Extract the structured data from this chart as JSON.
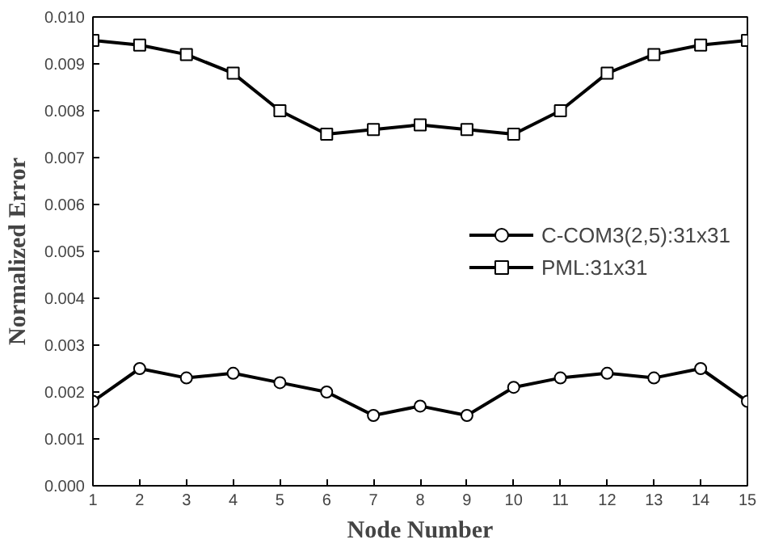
{
  "chart_data": {
    "type": "line",
    "xlabel": "Node Number",
    "ylabel": "Normalized Error",
    "x": [
      1,
      2,
      3,
      4,
      5,
      6,
      7,
      8,
      9,
      10,
      11,
      12,
      13,
      14,
      15
    ],
    "series": [
      {
        "name": "C-COM3(2,5):31x31",
        "color": "#000000",
        "marker": "circle",
        "values": [
          0.0018,
          0.0025,
          0.0023,
          0.0024,
          0.0022,
          0.002,
          0.0015,
          0.0017,
          0.0015,
          0.0021,
          0.0023,
          0.0024,
          0.0023,
          0.0025,
          0.0018
        ]
      },
      {
        "name": "PML:31x31",
        "color": "#000000",
        "marker": "square",
        "values": [
          0.0095,
          0.0094,
          0.0092,
          0.0088,
          0.008,
          0.0075,
          0.0076,
          0.0077,
          0.0076,
          0.0075,
          0.008,
          0.0088,
          0.0092,
          0.0094,
          0.0095
        ]
      }
    ],
    "xlim": [
      1,
      15
    ],
    "xticks": [
      1,
      2,
      3,
      4,
      5,
      6,
      7,
      8,
      9,
      10,
      11,
      12,
      13,
      14,
      15
    ],
    "ylim": [
      0,
      0.01
    ],
    "yticks": [
      {
        "value": 0,
        "label": "0.000"
      },
      {
        "value": 0.001,
        "label": "0.001"
      },
      {
        "value": 0.002,
        "label": "0.002"
      },
      {
        "value": 0.003,
        "label": "0.003"
      },
      {
        "value": 0.004,
        "label": "0.004"
      },
      {
        "value": 0.005,
        "label": "0.005"
      },
      {
        "value": 0.006,
        "label": "0.006"
      },
      {
        "value": 0.007,
        "label": "0.007"
      },
      {
        "value": 0.008,
        "label": "0.008"
      },
      {
        "value": 0.009,
        "label": "0.009"
      },
      {
        "value": 0.01,
        "label": "0.010"
      }
    ],
    "grid": false,
    "legend": "right",
    "line_style": "solid"
  }
}
